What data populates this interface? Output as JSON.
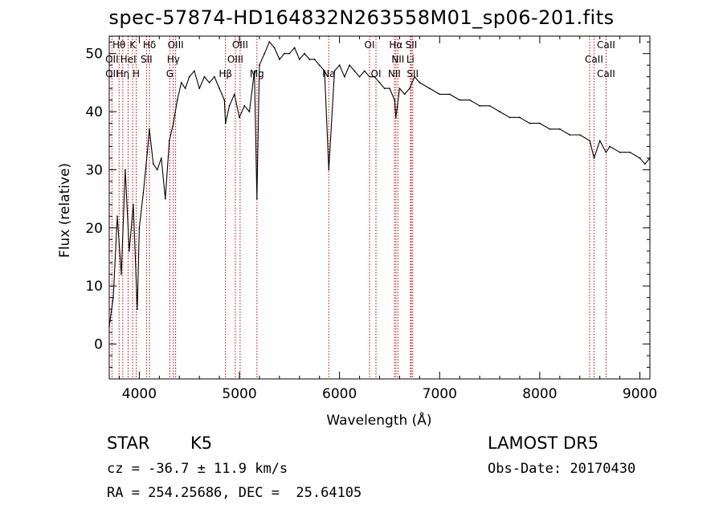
{
  "chart_data": {
    "type": "line",
    "title": "spec-57874-HD164832N263558M01_sp06-201.fits",
    "xlabel": "Wavelength (Å)",
    "ylabel": "Flux (relative)",
    "xlim": [
      3700,
      9100
    ],
    "ylim": [
      -6,
      53
    ],
    "xticks": [
      4000,
      5000,
      6000,
      7000,
      8000,
      9000
    ],
    "yticks": [
      0,
      10,
      20,
      30,
      40,
      50
    ],
    "grid": false,
    "series": [
      {
        "x": [
          3700,
          3740,
          3780,
          3820,
          3860,
          3900,
          3940,
          3980,
          4000,
          4040,
          4080,
          4100,
          4140,
          4180,
          4220,
          4260,
          4300,
          4340,
          4380,
          4420,
          4460,
          4500,
          4550,
          4600,
          4650,
          4700,
          4750,
          4800,
          4850,
          4861,
          4900,
          4950,
          5000,
          5050,
          5100,
          5150,
          5175,
          5200,
          5250,
          5300,
          5350,
          5400,
          5450,
          5500,
          5550,
          5600,
          5650,
          5700,
          5750,
          5800,
          5850,
          5893,
          5950,
          6000,
          6050,
          6100,
          6150,
          6200,
          6250,
          6300,
          6350,
          6400,
          6450,
          6500,
          6550,
          6563,
          6600,
          6650,
          6700,
          6750,
          6800,
          6900,
          7000,
          7100,
          7200,
          7300,
          7400,
          7500,
          7600,
          7700,
          7800,
          7900,
          8000,
          8100,
          8200,
          8300,
          8400,
          8500,
          8542,
          8600,
          8662,
          8700,
          8800,
          8900,
          9000,
          9050,
          9100
        ],
        "y": [
          3,
          8,
          22,
          12,
          30,
          16,
          24,
          6,
          20,
          26,
          33,
          37,
          31,
          30,
          32,
          25,
          35,
          38,
          42,
          45,
          44,
          46,
          47,
          44,
          46,
          45,
          46,
          44,
          42,
          38,
          41,
          43,
          39,
          41,
          40,
          47,
          25,
          48,
          50,
          52,
          51,
          49,
          50,
          50,
          51,
          49,
          50,
          49,
          49,
          48,
          47,
          30,
          47,
          48,
          46,
          48,
          47,
          46,
          47,
          46,
          46,
          45,
          44,
          44,
          42,
          39,
          44,
          43,
          44,
          46,
          45,
          44,
          43,
          43,
          42,
          42,
          41,
          41,
          40,
          39,
          39,
          38,
          38,
          37,
          37,
          36,
          36,
          35,
          32,
          35,
          33,
          34,
          33,
          33,
          32,
          31,
          32
        ]
      }
    ],
    "annotations": [
      {
        "label": "Hθ",
        "x": 3798,
        "row": 0
      },
      {
        "label": "K",
        "x": 3934,
        "row": 0
      },
      {
        "label": "Hδ",
        "x": 4102,
        "row": 0
      },
      {
        "label": "OIII",
        "x": 4363,
        "row": 0
      },
      {
        "label": "OIII",
        "x": 5007,
        "row": 0
      },
      {
        "label": "OI",
        "x": 6300,
        "row": 0
      },
      {
        "label": "Hα",
        "x": 6563,
        "row": 0
      },
      {
        "label": "SII",
        "x": 6717,
        "row": 0
      },
      {
        "label": "CaII",
        "x": 8662,
        "row": 0
      },
      {
        "label": "OII",
        "x": 3727,
        "row": 1
      },
      {
        "label": "HeI",
        "x": 3889,
        "row": 1
      },
      {
        "label": "SII",
        "x": 4072,
        "row": 1
      },
      {
        "label": "Hγ",
        "x": 4340,
        "row": 1
      },
      {
        "label": "OIII",
        "x": 4959,
        "row": 1
      },
      {
        "label": "NII",
        "x": 6583,
        "row": 1
      },
      {
        "label": "Li",
        "x": 6708,
        "row": 1
      },
      {
        "label": "CaII",
        "x": 8542,
        "row": 1
      },
      {
        "label": "OII",
        "x": 3727,
        "row": 2
      },
      {
        "label": "Hη",
        "x": 3835,
        "row": 2
      },
      {
        "label": "H",
        "x": 3969,
        "row": 2
      },
      {
        "label": "G",
        "x": 4305,
        "row": 2
      },
      {
        "label": "Hβ",
        "x": 4861,
        "row": 2
      },
      {
        "label": "Mg",
        "x": 5175,
        "row": 2
      },
      {
        "label": "Na",
        "x": 5893,
        "row": 2
      },
      {
        "label": "OI",
        "x": 6364,
        "row": 2
      },
      {
        "label": "NII",
        "x": 6548,
        "row": 2
      },
      {
        "label": "SII",
        "x": 6731,
        "row": 2
      },
      {
        "label": "CaII",
        "x": 8662,
        "row": 2
      }
    ],
    "lines_x": [
      3727,
      3798,
      3835,
      3889,
      3934,
      3969,
      4072,
      4102,
      4305,
      4340,
      4363,
      4861,
      4959,
      5007,
      5175,
      5893,
      6300,
      6364,
      6548,
      6563,
      6583,
      6708,
      6717,
      6731,
      8498,
      8542,
      8662
    ],
    "line_color": "#cc0000"
  },
  "info": {
    "object_type": "STAR",
    "subclass": "K5",
    "survey": "LAMOST DR5",
    "cz": "cz = -36.7 ± 11.9 km/s",
    "obs_date": "Obs-Date: 20170430",
    "radec": "RA = 254.25686, DEC =  25.64105"
  }
}
